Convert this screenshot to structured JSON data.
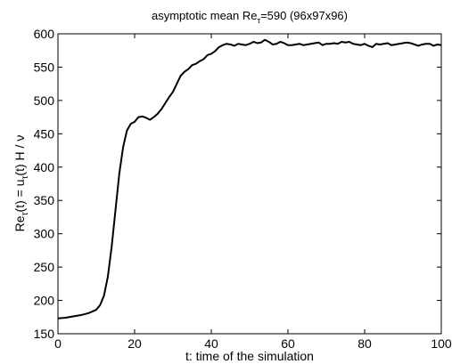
{
  "chart_data": {
    "type": "line",
    "title": "asymptotic mean Re_τ=590 (96x97x96)",
    "title_parts": {
      "prefix": "asymptotic mean Re",
      "sub": "τ",
      "suffix": "=590 (96x97x96)"
    },
    "xlabel": "t: time of the simulation",
    "ylabel": "Re_τ(t) = u_τ(t) H / ν",
    "ylabel_parts": {
      "a": "Re",
      "a_sub": "τ",
      "b": "(t) = u",
      "b_sub": "τ",
      "c": "(t) H / ν"
    },
    "xlim": [
      0,
      100
    ],
    "ylim": [
      150,
      600
    ],
    "xticks": [
      0,
      20,
      40,
      60,
      80,
      100
    ],
    "xtick_labels": [
      "0",
      "20",
      "40",
      "60",
      "80",
      "100"
    ],
    "yticks": [
      150,
      200,
      250,
      300,
      350,
      400,
      450,
      500,
      550,
      600
    ],
    "ytick_labels": [
      "150",
      "200",
      "250",
      "300",
      "350",
      "400",
      "450",
      "500",
      "550",
      "600"
    ],
    "grid": false,
    "series": [
      {
        "color": "#000000",
        "x": [
          0,
          2,
          4,
          6,
          8,
          10,
          11,
          12,
          13,
          14,
          15,
          16,
          17,
          18,
          19,
          20,
          21,
          22,
          23,
          24,
          25,
          26,
          27,
          28,
          29,
          30,
          31,
          32,
          33,
          34,
          35,
          36,
          37,
          38,
          39,
          40,
          41,
          42,
          43,
          44,
          45,
          46,
          47,
          48,
          49,
          50,
          51,
          52,
          53,
          54,
          55,
          56,
          57,
          58,
          59,
          60,
          61,
          62,
          63,
          64,
          65,
          66,
          67,
          68,
          69,
          70,
          71,
          72,
          73,
          74,
          75,
          76,
          77,
          78,
          79,
          80,
          81,
          82,
          83,
          84,
          85,
          86,
          87,
          88,
          89,
          90,
          91,
          92,
          93,
          94,
          95,
          96,
          97,
          98,
          99,
          100
        ],
        "y": [
          173,
          174,
          176,
          178,
          181,
          186,
          193,
          207,
          235,
          280,
          335,
          390,
          430,
          455,
          465,
          468,
          475,
          476,
          474,
          471,
          475,
          480,
          487,
          496,
          505,
          513,
          525,
          537,
          543,
          547,
          553,
          555,
          559,
          562,
          568,
          570,
          574,
          580,
          583,
          585,
          584,
          582,
          585,
          584,
          583,
          585,
          588,
          586,
          587,
          591,
          588,
          584,
          585,
          588,
          586,
          583,
          583,
          584,
          585,
          583,
          584,
          585,
          586,
          587,
          583,
          585,
          585,
          586,
          585,
          588,
          587,
          588,
          585,
          584,
          583,
          585,
          582,
          580,
          585,
          584,
          585,
          586,
          583,
          584,
          585,
          586,
          587,
          586,
          584,
          582,
          584,
          585,
          585,
          582,
          584,
          583
        ]
      }
    ]
  }
}
